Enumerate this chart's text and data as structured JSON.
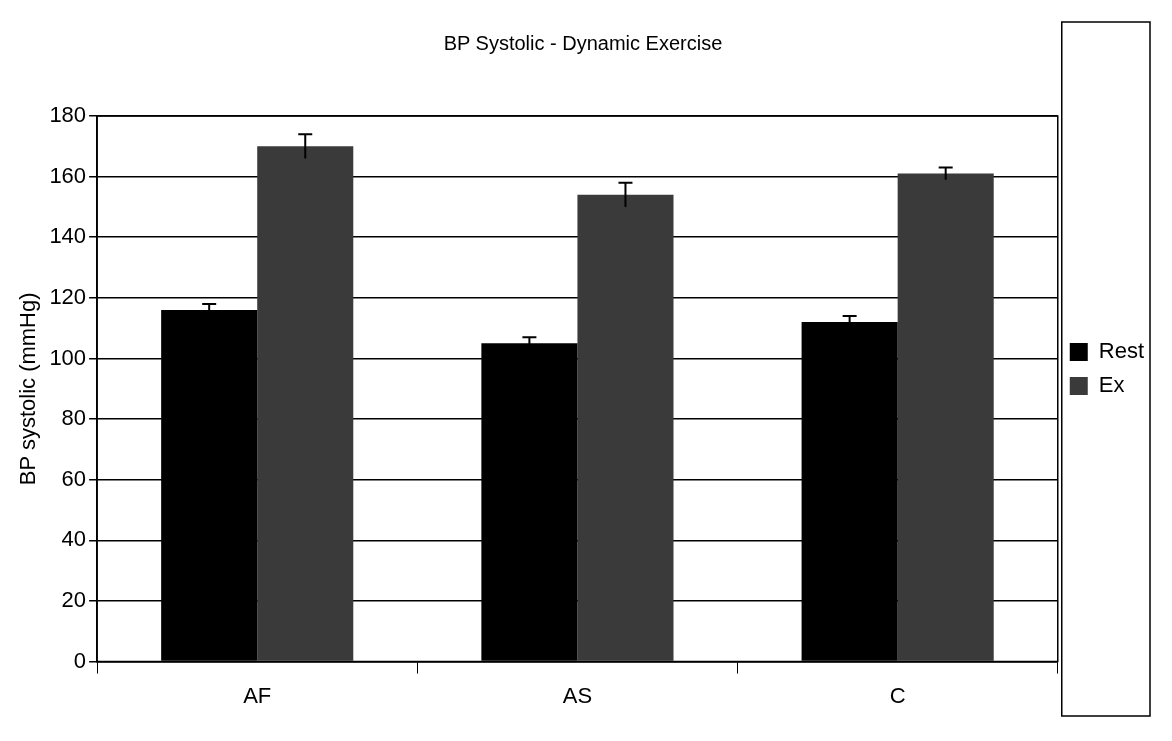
{
  "chart_data": {
    "type": "bar",
    "title": "BP Systolic - Dynamic Exercise",
    "ylabel": "BP systolic (mmHg)",
    "categories": [
      "AF",
      "AS",
      "C"
    ],
    "series": [
      {
        "name": "Rest",
        "color": "#000000",
        "values": [
          116,
          105,
          112
        ],
        "errors": [
          2,
          2,
          2
        ]
      },
      {
        "name": "Ex",
        "color": "#3a3a3a",
        "values": [
          170,
          154,
          161
        ],
        "errors": [
          4,
          4,
          2
        ]
      }
    ],
    "ylim": [
      0,
      180
    ],
    "yticks": [
      0,
      20,
      40,
      60,
      80,
      100,
      120,
      140,
      160,
      180
    ],
    "grid": "y",
    "legend": "right"
  }
}
